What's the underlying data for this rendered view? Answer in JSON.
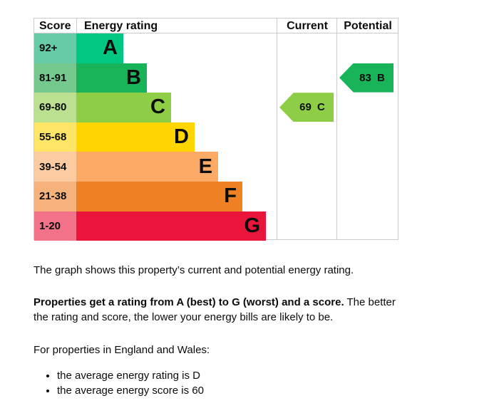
{
  "chart_data": {
    "type": "bar",
    "title": "Energy rating",
    "headers": {
      "score": "Score",
      "rating": "Energy rating",
      "current": "Current",
      "potential": "Potential"
    },
    "bands": [
      {
        "letter": "A",
        "range": "92+",
        "color": "#00c781",
        "light": "#66cba6"
      },
      {
        "letter": "B",
        "range": "81-91",
        "color": "#19b459",
        "light": "#75c98f"
      },
      {
        "letter": "C",
        "range": "69-80",
        "color": "#8dce46",
        "light": "#bbe08f"
      },
      {
        "letter": "D",
        "range": "55-68",
        "color": "#ffd500",
        "light": "#ffe566"
      },
      {
        "letter": "E",
        "range": "39-54",
        "color": "#fcaa65",
        "light": "#fdcba2"
      },
      {
        "letter": "F",
        "range": "21-38",
        "color": "#ef8023",
        "light": "#f5b37b"
      },
      {
        "letter": "G",
        "range": "1-20",
        "color": "#e9153b",
        "light": "#f27389"
      }
    ],
    "current": {
      "score": 69,
      "letter": "C",
      "label": "69 C"
    },
    "potential": {
      "score": 83,
      "letter": "B",
      "label": "83 B"
    }
  },
  "text": {
    "p1": "The graph shows this property’s current and potential energy rating.",
    "p2_bold": "Properties get a rating from A (best) to G (worst) and a score.",
    "p2_rest": " The better the rating and score, the lower your energy bills are likely to be.",
    "p3": "For properties in England and Wales:",
    "bullets": [
      "the average energy rating is D",
      "the average energy score is 60"
    ]
  }
}
